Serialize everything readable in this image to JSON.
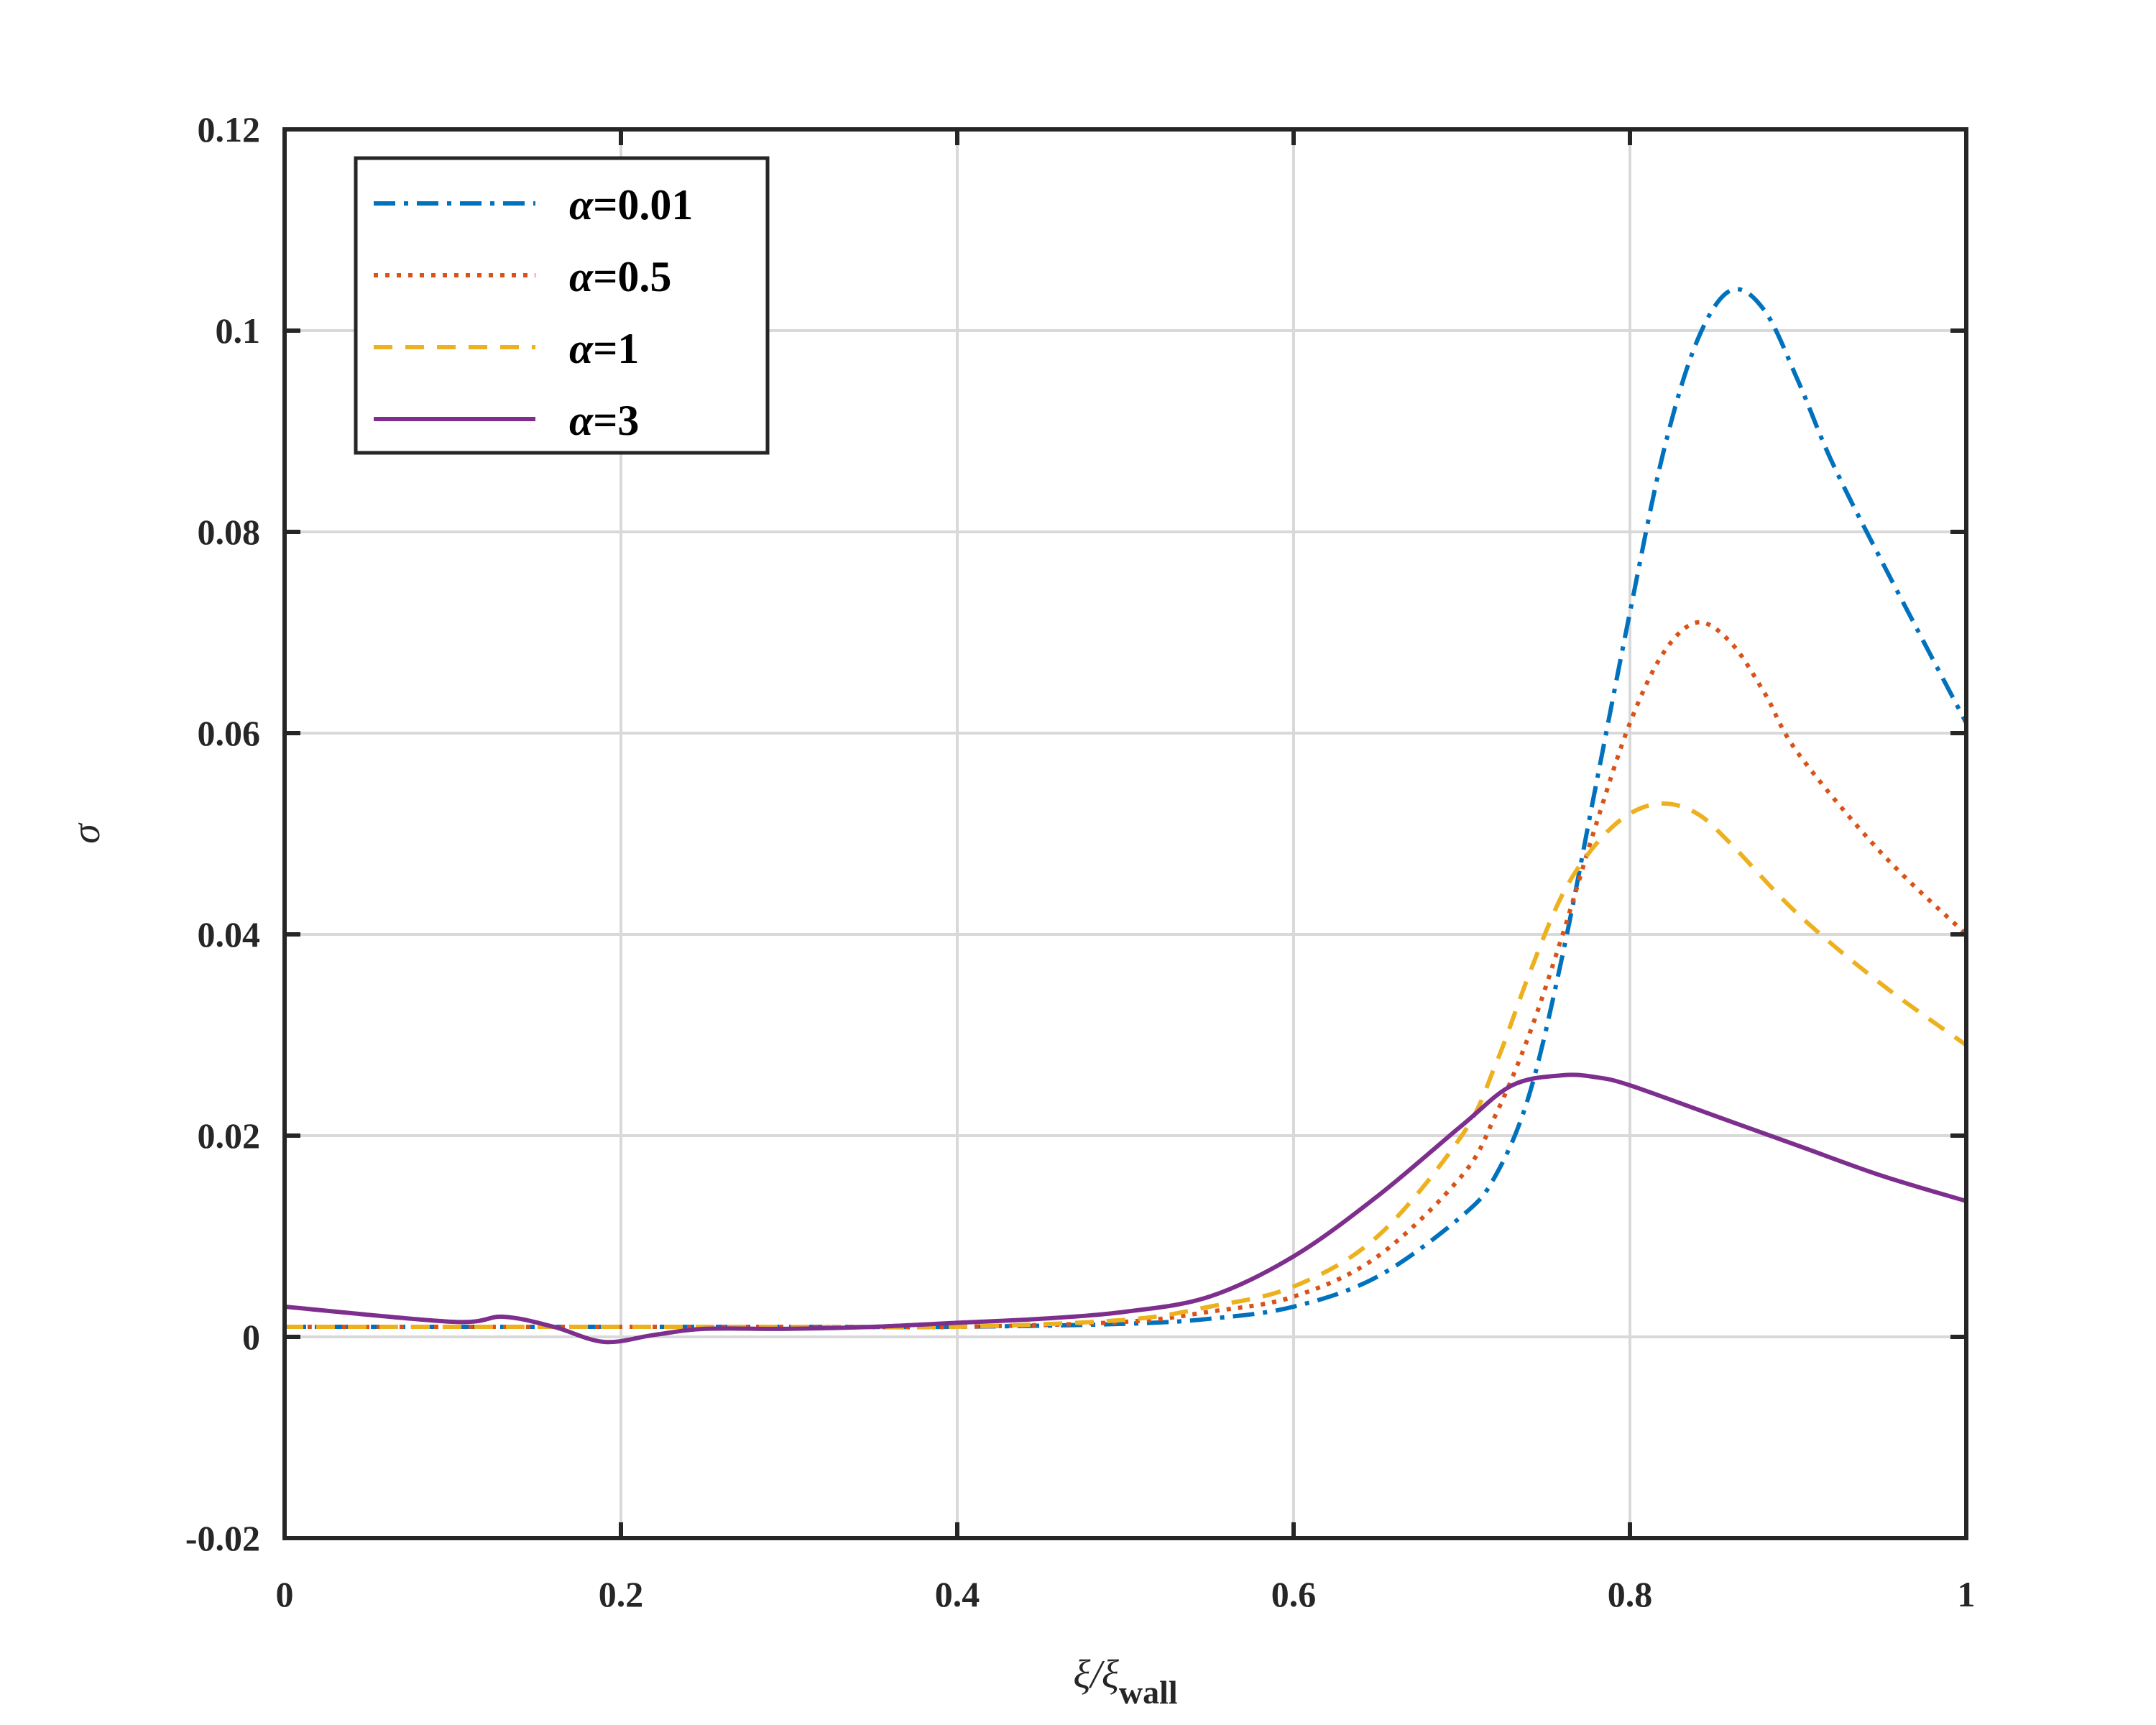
{
  "chart_data": {
    "type": "line",
    "xlabel": "ξ/ξwall",
    "xlabel_main": "ξ/ξ",
    "xlabel_sub": "wall",
    "ylabel": "σ",
    "xlim": [
      0,
      1
    ],
    "ylim": [
      -0.02,
      0.12
    ],
    "xticks": [
      0,
      0.2,
      0.4,
      0.6,
      0.8,
      1
    ],
    "xtick_labels": [
      "0",
      "0.2",
      "0.4",
      "0.6",
      "0.8",
      "1"
    ],
    "yticks": [
      -0.02,
      0,
      0.02,
      0.04,
      0.06,
      0.08,
      0.1,
      0.12
    ],
    "ytick_labels": [
      "-0.02",
      "0",
      "0.02",
      "0.04",
      "0.06",
      "0.08",
      "0.1",
      "0.12"
    ],
    "grid": true,
    "legend_position": "top-left",
    "legend_symbol": "α",
    "series": [
      {
        "name": "α=0.01",
        "legend_value": "=0.01",
        "color": "#0072BD",
        "style": "dashdot",
        "x": [
          0,
          0.01,
          0.05,
          0.1,
          0.2,
          0.3,
          0.4,
          0.5,
          0.55,
          0.6,
          0.65,
          0.7,
          0.72,
          0.74,
          0.76,
          0.78,
          0.8,
          0.82,
          0.84,
          0.86,
          0.88,
          0.9,
          0.92,
          0.95,
          1.0
        ],
        "y": [
          0.001,
          0.001,
          0.001,
          0.001,
          0.001,
          0.001,
          0.001,
          0.0013,
          0.0018,
          0.003,
          0.006,
          0.012,
          0.016,
          0.024,
          0.038,
          0.055,
          0.072,
          0.088,
          0.099,
          0.104,
          0.102,
          0.095,
          0.087,
          0.077,
          0.061
        ]
      },
      {
        "name": "α=0.5",
        "legend_value": "=0.5",
        "color": "#D95319",
        "style": "dotted",
        "x": [
          0,
          0.01,
          0.05,
          0.1,
          0.2,
          0.3,
          0.4,
          0.5,
          0.55,
          0.6,
          0.65,
          0.7,
          0.72,
          0.74,
          0.76,
          0.78,
          0.8,
          0.82,
          0.84,
          0.86,
          0.88,
          0.9,
          0.95,
          1.0
        ],
        "y": [
          0.001,
          0.001,
          0.001,
          0.001,
          0.001,
          0.001,
          0.001,
          0.0015,
          0.0025,
          0.004,
          0.008,
          0.016,
          0.022,
          0.03,
          0.04,
          0.051,
          0.061,
          0.068,
          0.071,
          0.069,
          0.064,
          0.058,
          0.048,
          0.04
        ]
      },
      {
        "name": "α=1",
        "legend_value": "=1",
        "color": "#EDB120",
        "style": "dashed",
        "x": [
          0,
          0.01,
          0.05,
          0.1,
          0.2,
          0.3,
          0.4,
          0.5,
          0.55,
          0.6,
          0.65,
          0.7,
          0.72,
          0.74,
          0.76,
          0.78,
          0.8,
          0.82,
          0.84,
          0.86,
          0.9,
          0.95,
          1.0
        ],
        "y": [
          0.001,
          0.001,
          0.001,
          0.001,
          0.001,
          0.001,
          0.001,
          0.0017,
          0.003,
          0.005,
          0.01,
          0.02,
          0.027,
          0.036,
          0.044,
          0.049,
          0.052,
          0.053,
          0.052,
          0.049,
          0.042,
          0.035,
          0.029
        ]
      },
      {
        "name": "α=3",
        "legend_value": "=3",
        "color": "#7E2F8E",
        "style": "solid",
        "x": [
          0,
          0.1,
          0.13,
          0.16,
          0.19,
          0.22,
          0.25,
          0.3,
          0.35,
          0.4,
          0.45,
          0.5,
          0.55,
          0.6,
          0.65,
          0.7,
          0.73,
          0.76,
          0.78,
          0.8,
          0.85,
          0.9,
          0.95,
          1.0
        ],
        "y": [
          0.003,
          0.0015,
          0.002,
          0.001,
          -0.0005,
          0.0002,
          0.0008,
          0.0008,
          0.001,
          0.0014,
          0.0018,
          0.0025,
          0.004,
          0.008,
          0.014,
          0.021,
          0.025,
          0.026,
          0.0258,
          0.025,
          0.022,
          0.019,
          0.016,
          0.0135
        ]
      }
    ]
  }
}
